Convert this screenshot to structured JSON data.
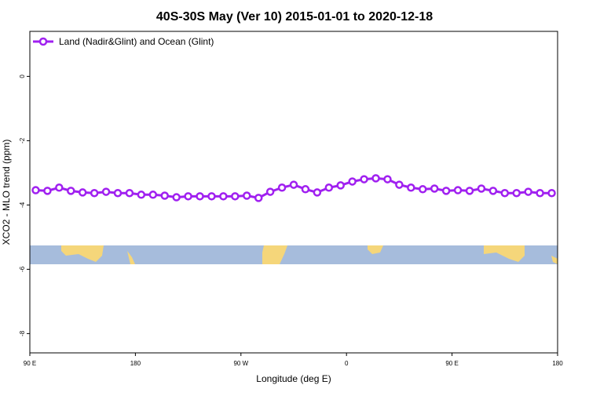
{
  "chart_data": {
    "type": "line",
    "title": "40S-30S May (Ver 10)   2015-01-01 to 2020-12-18",
    "x_label": "Longitude (deg E)",
    "y_label": "XCO2 - MLO trend (ppm)",
    "x": [
      95,
      105,
      115,
      125,
      135,
      145,
      155,
      165,
      175,
      185,
      195,
      205,
      215,
      225,
      235,
      245,
      255,
      265,
      275,
      285,
      295,
      305,
      315,
      325,
      335,
      345,
      355,
      365,
      375,
      385,
      395,
      405,
      415,
      425,
      435,
      445,
      455,
      465,
      475,
      485,
      495,
      505,
      515,
      525,
      535
    ],
    "series": [
      {
        "name": "Land (Nadir&Glint) and Ocean (Glint)",
        "color": "#a020f0",
        "values": [
          -3.54,
          -3.56,
          -3.46,
          -3.56,
          -3.61,
          -3.63,
          -3.59,
          -3.63,
          -3.63,
          -3.68,
          -3.68,
          -3.71,
          -3.76,
          -3.73,
          -3.73,
          -3.73,
          -3.73,
          -3.73,
          -3.71,
          -3.78,
          -3.59,
          -3.46,
          -3.37,
          -3.51,
          -3.61,
          -3.46,
          -3.39,
          -3.27,
          -3.2,
          -3.17,
          -3.2,
          -3.37,
          -3.46,
          -3.51,
          -3.49,
          -3.56,
          -3.54,
          -3.56,
          -3.49,
          -3.56,
          -3.63,
          -3.63,
          -3.59,
          -3.63,
          -3.63
        ]
      }
    ],
    "xlim": [
      90,
      540
    ],
    "xticks": [
      {
        "value": 90,
        "label": "90 E"
      },
      {
        "value": 180,
        "label": "180"
      },
      {
        "value": 270,
        "label": "90 W"
      },
      {
        "value": 360,
        "label": "0"
      },
      {
        "value": 450,
        "label": "90 E"
      },
      {
        "value": 540,
        "label": "180"
      }
    ],
    "ylim": [
      -8.6,
      1.4
    ],
    "yticks": [
      0,
      -2,
      -4,
      -6,
      -8
    ],
    "legend": "top-left"
  }
}
